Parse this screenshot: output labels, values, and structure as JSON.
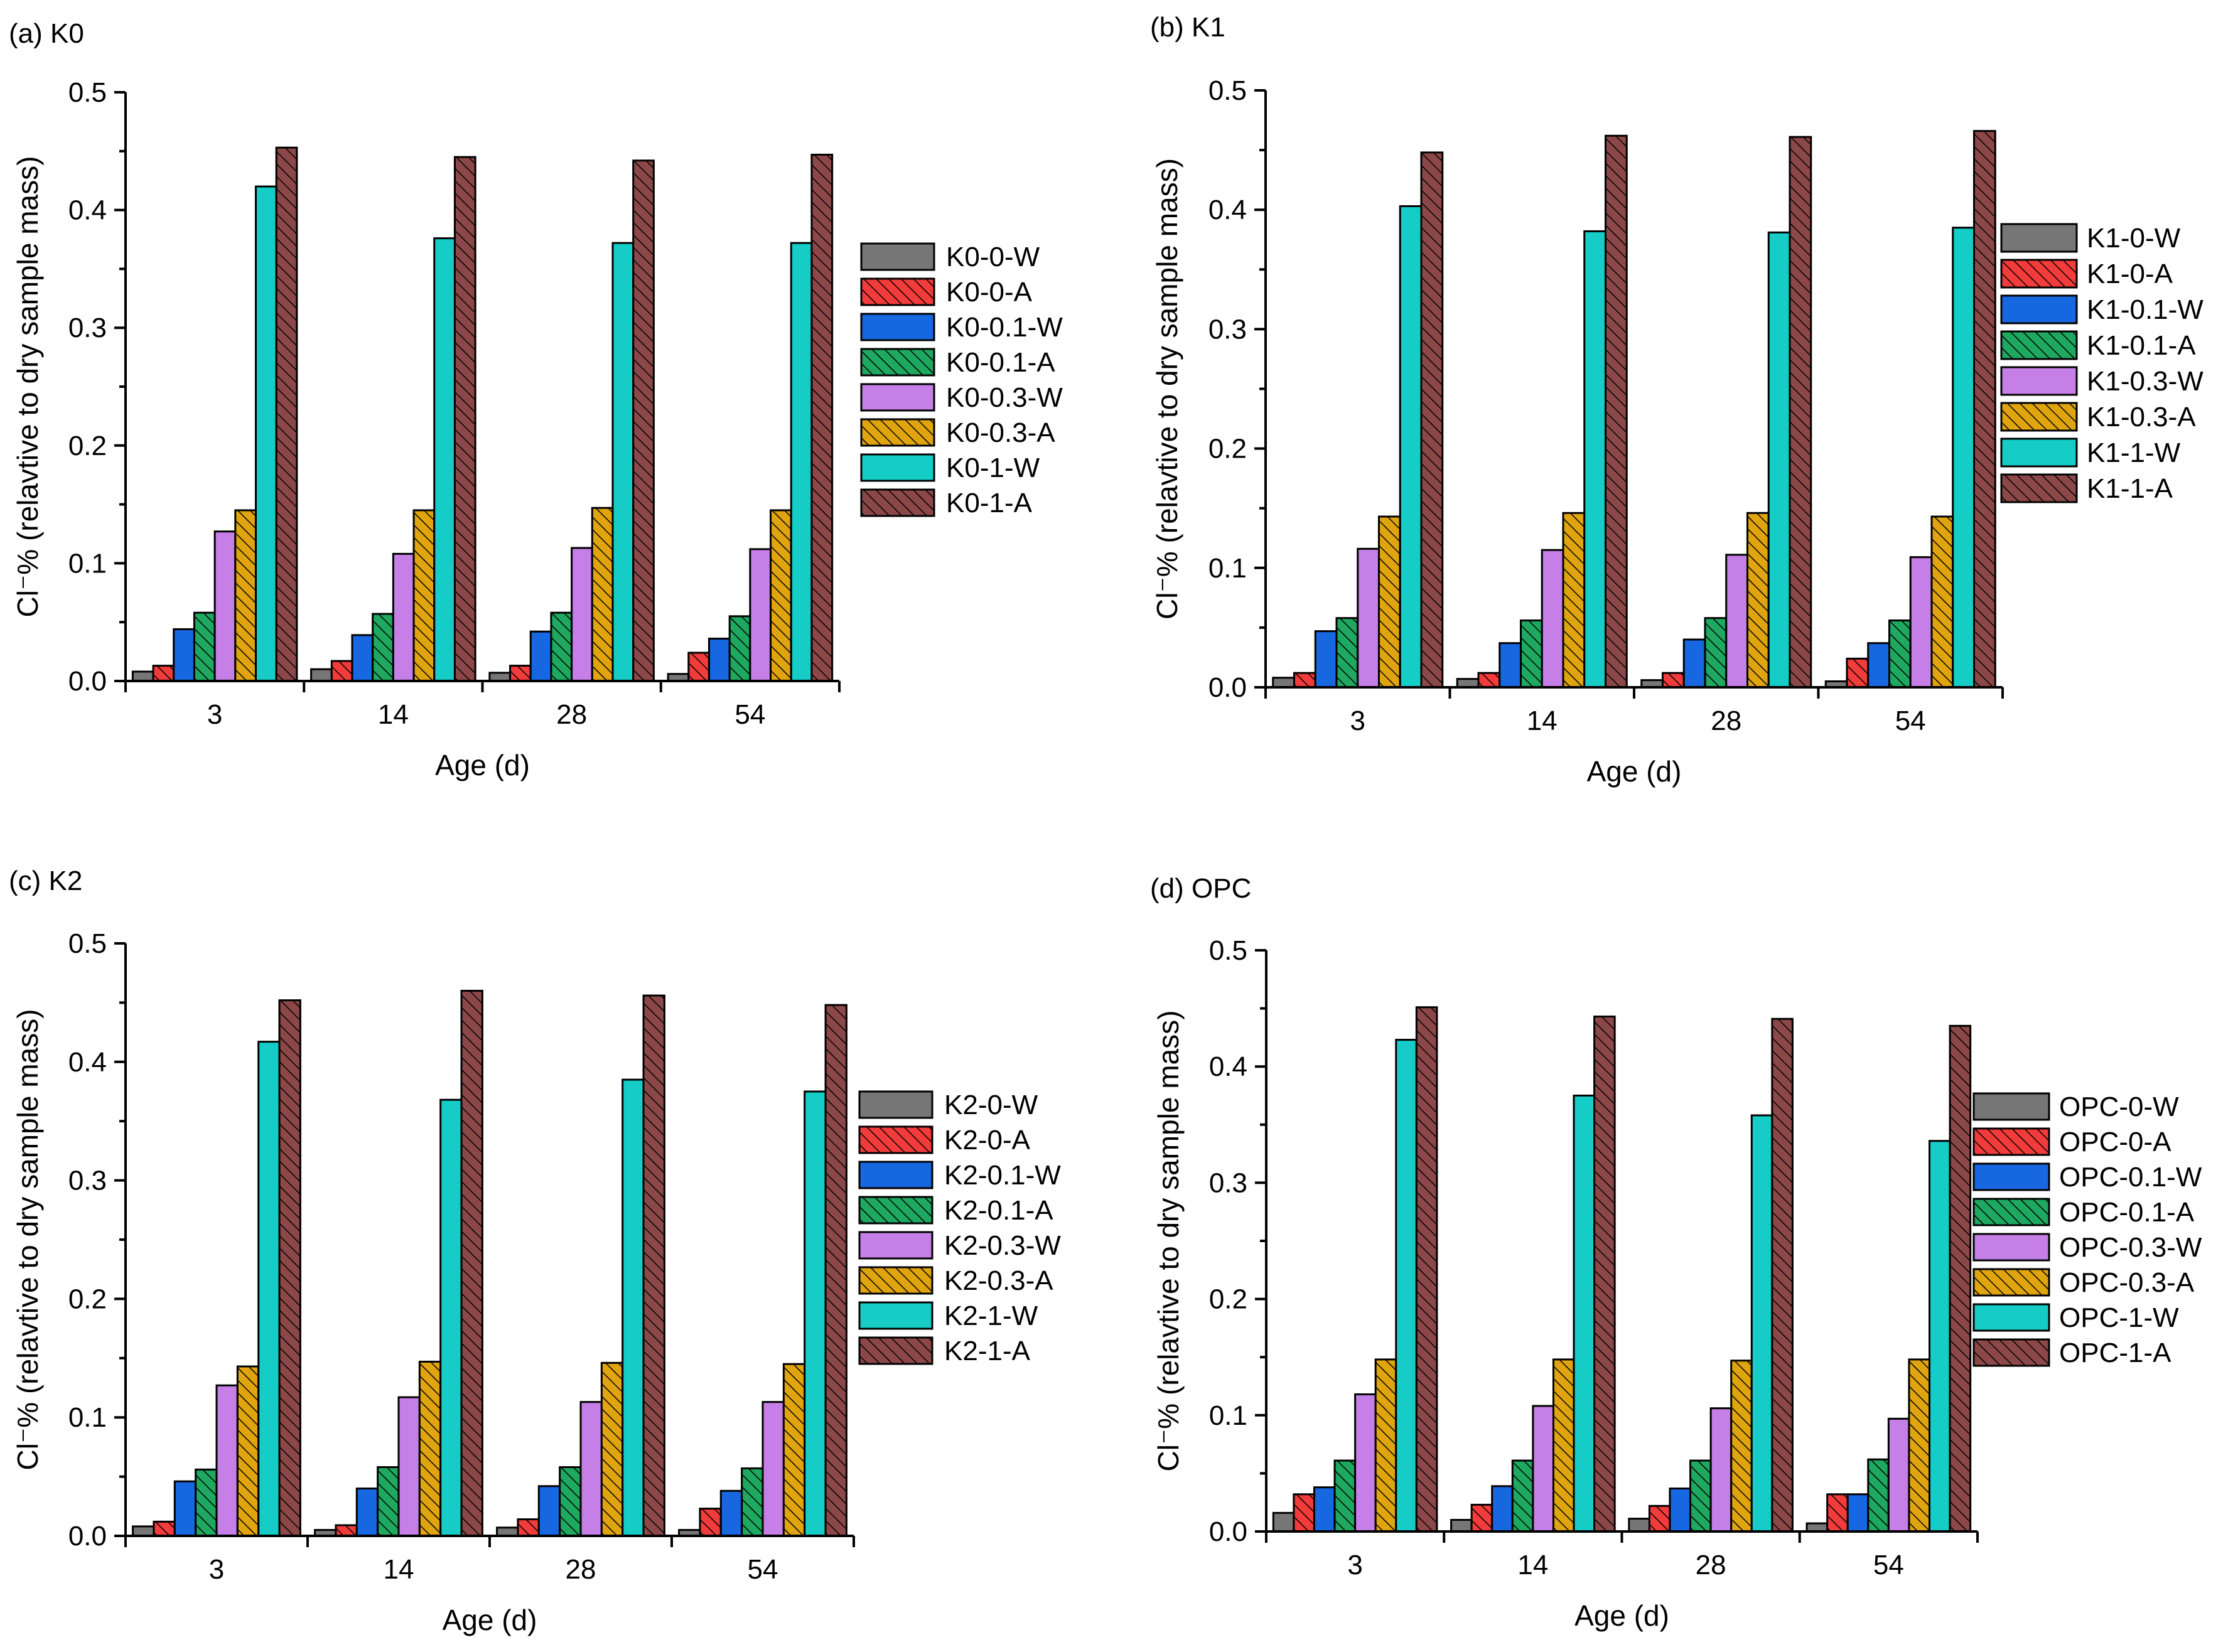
{
  "colors": {
    "K0-0-W": "#767676",
    "0-A": "#f23b3b",
    "0.1-W": "#1768e0",
    "0.1-A": "#1ea860",
    "0.3-W": "#c57fe6",
    "0.3-A": "#e0a40e",
    "1-W": "#15cdc6",
    "1-A": "#8c4848"
  },
  "series_style": [
    {
      "suffix": "0-W",
      "color": "#767676",
      "hatched": false,
      "color-name": "gray"
    },
    {
      "suffix": "0-A",
      "color": "#f23b3b",
      "hatched": true,
      "color-name": "red"
    },
    {
      "suffix": "0.1-W",
      "color": "#1768e0",
      "hatched": false,
      "color-name": "blue"
    },
    {
      "suffix": "0.1-A",
      "color": "#1ea860",
      "hatched": true,
      "color-name": "green"
    },
    {
      "suffix": "0.3-W",
      "color": "#c57fe6",
      "hatched": false,
      "color-name": "violet"
    },
    {
      "suffix": "0.3-A",
      "color": "#e0a40e",
      "hatched": true,
      "color-name": "orange"
    },
    {
      "suffix": "1-W",
      "color": "#15cdc6",
      "hatched": false,
      "color-name": "cyan"
    },
    {
      "suffix": "1-A",
      "color": "#8c4848",
      "hatched": true,
      "color-name": "brown"
    }
  ],
  "chart_data": [
    {
      "id": "k0",
      "type": "bar",
      "title": "(a) K0",
      "xlabel": "Age (d)",
      "ylabel": "Cl⁻% (relavtive to dry sample mass)",
      "ylim": [
        0,
        0.5
      ],
      "yticks": [
        "0.0",
        "0.1",
        "0.2",
        "0.3",
        "0.4",
        "0.5"
      ],
      "legend_position": "right",
      "categories": [
        "3",
        "14",
        "28",
        "54"
      ],
      "series": [
        {
          "name": "K0-0-W",
          "values": [
            0.008,
            0.01,
            0.007,
            0.006
          ]
        },
        {
          "name": "K0-0-A",
          "values": [
            0.013,
            0.017,
            0.013,
            0.024
          ]
        },
        {
          "name": "K0-0.1-W",
          "values": [
            0.044,
            0.039,
            0.042,
            0.036
          ]
        },
        {
          "name": "K0-0.1-A",
          "values": [
            0.058,
            0.057,
            0.058,
            0.055
          ]
        },
        {
          "name": "K0-0.3-W",
          "values": [
            0.127,
            0.108,
            0.113,
            0.112
          ]
        },
        {
          "name": "K0-0.3-A",
          "values": [
            0.145,
            0.145,
            0.147,
            0.145
          ]
        },
        {
          "name": "K0-1-W",
          "values": [
            0.42,
            0.376,
            0.372,
            0.372
          ]
        },
        {
          "name": "K0-1-A",
          "values": [
            0.453,
            0.445,
            0.442,
            0.447
          ]
        }
      ]
    },
    {
      "id": "k1",
      "type": "bar",
      "title": "(b) K1",
      "xlabel": "Age (d)",
      "ylabel": "Cl⁻% (relavtive to dry sample mass)",
      "ylim": [
        0,
        0.5
      ],
      "yticks": [
        "0.0",
        "0.1",
        "0.2",
        "0.3",
        "0.4",
        "0.5"
      ],
      "legend_position": "right",
      "categories": [
        "3",
        "14",
        "28",
        "54"
      ],
      "series": [
        {
          "name": "K1-0-W",
          "values": [
            0.008,
            0.007,
            0.006,
            0.005
          ]
        },
        {
          "name": "K1-0-A",
          "values": [
            0.012,
            0.012,
            0.012,
            0.024
          ]
        },
        {
          "name": "K1-0.1-W",
          "values": [
            0.047,
            0.037,
            0.04,
            0.037
          ]
        },
        {
          "name": "K1-0.1-A",
          "values": [
            0.058,
            0.056,
            0.058,
            0.056
          ]
        },
        {
          "name": "K1-0.3-W",
          "values": [
            0.116,
            0.115,
            0.111,
            0.109
          ]
        },
        {
          "name": "K1-0.3-A",
          "values": [
            0.143,
            0.146,
            0.146,
            0.143
          ]
        },
        {
          "name": "K1-1-W",
          "values": [
            0.403,
            0.382,
            0.381,
            0.385
          ]
        },
        {
          "name": "K1-1-A",
          "values": [
            0.448,
            0.462,
            0.461,
            0.466
          ]
        }
      ]
    },
    {
      "id": "k2",
      "type": "bar",
      "title": "(c) K2",
      "xlabel": "Age (d)",
      "ylabel": "Cl⁻% (relavtive to dry sample mass)",
      "ylim": [
        0,
        0.5
      ],
      "yticks": [
        "0.0",
        "0.1",
        "0.2",
        "0.3",
        "0.4",
        "0.5"
      ],
      "legend_position": "right",
      "categories": [
        "3",
        "14",
        "28",
        "54"
      ],
      "series": [
        {
          "name": "K2-0-W",
          "values": [
            0.008,
            0.005,
            0.007,
            0.005
          ]
        },
        {
          "name": "K2-0-A",
          "values": [
            0.012,
            0.009,
            0.014,
            0.023
          ]
        },
        {
          "name": "K2-0.1-W",
          "values": [
            0.046,
            0.04,
            0.042,
            0.038
          ]
        },
        {
          "name": "K2-0.1-A",
          "values": [
            0.056,
            0.058,
            0.058,
            0.057
          ]
        },
        {
          "name": "K2-0.3-W",
          "values": [
            0.127,
            0.117,
            0.113,
            0.113
          ]
        },
        {
          "name": "K2-0.3-A",
          "values": [
            0.143,
            0.147,
            0.146,
            0.145
          ]
        },
        {
          "name": "K2-1-W",
          "values": [
            0.417,
            0.368,
            0.385,
            0.375
          ]
        },
        {
          "name": "K2-1-A",
          "values": [
            0.452,
            0.46,
            0.456,
            0.448
          ]
        }
      ]
    },
    {
      "id": "opc",
      "type": "bar",
      "title": "(d) OPC",
      "xlabel": "Age (d)",
      "ylabel": "Cl⁻% (relavtive to dry sample mass)",
      "ylim": [
        0,
        0.5
      ],
      "yticks": [
        "0.0",
        "0.1",
        "0.2",
        "0.3",
        "0.4",
        "0.5"
      ],
      "legend_position": "right",
      "categories": [
        "3",
        "14",
        "28",
        "54"
      ],
      "series": [
        {
          "name": "OPC-0-W",
          "values": [
            0.016,
            0.01,
            0.011,
            0.007
          ]
        },
        {
          "name": "OPC-0-A",
          "values": [
            0.032,
            0.023,
            0.022,
            0.032
          ]
        },
        {
          "name": "OPC-0.1-W",
          "values": [
            0.038,
            0.039,
            0.037,
            0.032
          ]
        },
        {
          "name": "OPC-0.1-A",
          "values": [
            0.061,
            0.061,
            0.061,
            0.062
          ]
        },
        {
          "name": "OPC-0.3-W",
          "values": [
            0.118,
            0.108,
            0.106,
            0.097
          ]
        },
        {
          "name": "OPC-0.3-A",
          "values": [
            0.148,
            0.148,
            0.147,
            0.148
          ]
        },
        {
          "name": "OPC-1-W",
          "values": [
            0.423,
            0.375,
            0.358,
            0.336
          ]
        },
        {
          "name": "OPC-1-A",
          "values": [
            0.451,
            0.443,
            0.441,
            0.435
          ]
        }
      ]
    }
  ]
}
